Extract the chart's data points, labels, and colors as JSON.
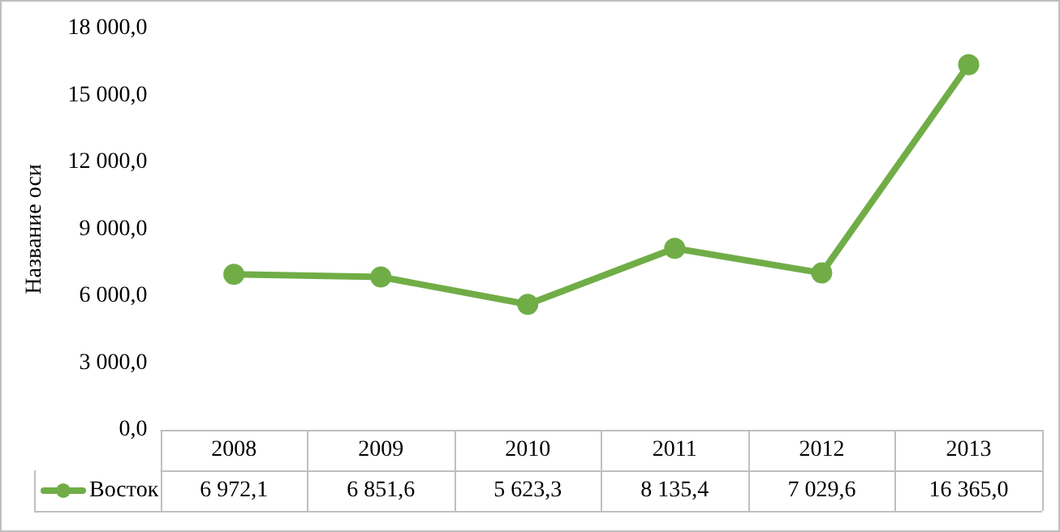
{
  "chart_data": {
    "type": "line",
    "ylabel": "Название оси",
    "categories": [
      "2008",
      "2009",
      "2010",
      "2011",
      "2012",
      "2013"
    ],
    "series": [
      {
        "name": "Восток",
        "color": "#70ad47",
        "values": [
          6972.1,
          6851.6,
          5623.3,
          8135.4,
          7029.6,
          16365.0
        ],
        "value_labels": [
          "6 972,1",
          "6 851,6",
          "5 623,3",
          "8 135,4",
          "7 029,6",
          "16 365,0"
        ]
      }
    ],
    "ylim": [
      0,
      18000
    ],
    "yticks": [
      {
        "value": 0,
        "label": "0,0"
      },
      {
        "value": 3000,
        "label": "3 000,0"
      },
      {
        "value": 6000,
        "label": "6 000,0"
      },
      {
        "value": 9000,
        "label": "9 000,0"
      },
      {
        "value": 12000,
        "label": "12 000,0"
      },
      {
        "value": 15000,
        "label": "15 000,0"
      },
      {
        "value": 18000,
        "label": "18 000,0"
      }
    ],
    "grid": false,
    "legend": "bottom",
    "marker": "circle",
    "line_style": "solid",
    "data_labels": true
  }
}
